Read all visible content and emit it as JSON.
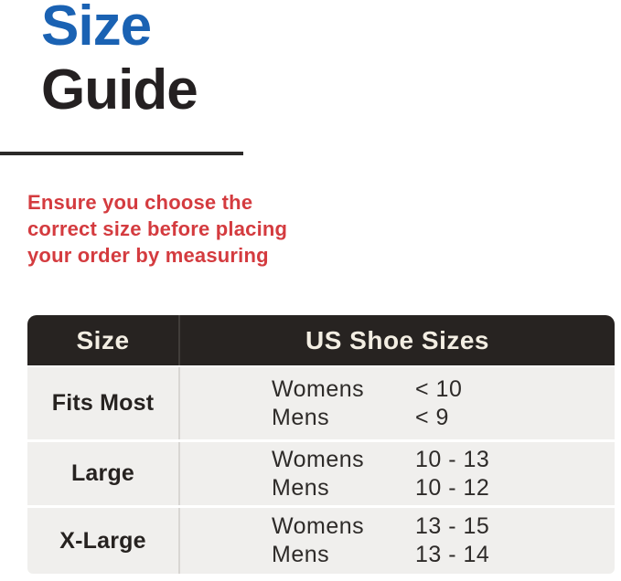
{
  "title": {
    "word1": "Size",
    "word2": "Guide"
  },
  "intro": {
    "lines": [
      "Ensure you choose the",
      "correct size before placing",
      "your order by measuring"
    ]
  },
  "table": {
    "headers": [
      "Size",
      "US Shoe Sizes"
    ],
    "rows": [
      {
        "size": "Fits Most",
        "entries": [
          {
            "group": "Womens",
            "range": "< 10"
          },
          {
            "group": "Mens",
            "range": "< 9"
          }
        ]
      },
      {
        "size": "Large",
        "entries": [
          {
            "group": "Womens",
            "range": "10 - 13"
          },
          {
            "group": "Mens",
            "range": "10 - 12"
          }
        ]
      },
      {
        "size": "X-Large",
        "entries": [
          {
            "group": "Womens",
            "range": "13 - 15"
          },
          {
            "group": "Mens",
            "range": "13 - 14"
          }
        ]
      }
    ]
  },
  "colors": {
    "accent_blue": "#1A62B3",
    "title_dark": "#242021",
    "warning_red": "#D43B3F",
    "header_bg": "#272321",
    "header_text": "#F3EEE3",
    "row_bg": "#F0EFED",
    "divider": "#D8D6D3"
  }
}
